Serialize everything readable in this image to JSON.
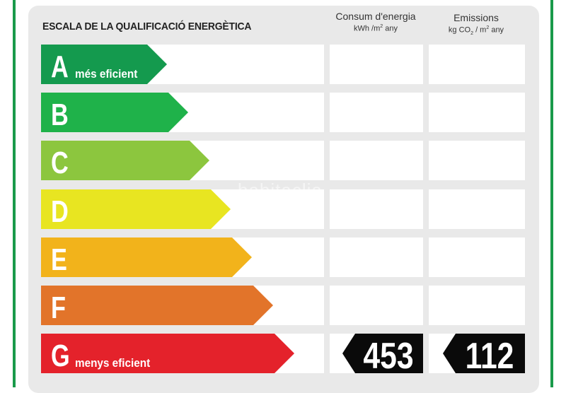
{
  "title": "ESCALA DE LA QUALIFICACIÓ ENERGÈTICA",
  "columns": {
    "consum": {
      "label": "Consum d'energia",
      "unit_pre": "kWh /m",
      "unit_sup": "2",
      "unit_post": " any"
    },
    "emissions": {
      "label": "Emissions",
      "unit_pre": "kg CO",
      "unit_sub": "2",
      "unit_mid": " / m",
      "unit_sup": "2",
      "unit_post": " any"
    }
  },
  "ratings": [
    {
      "letter": "A",
      "caption": "més eficient",
      "color": "#149a4e"
    },
    {
      "letter": "B",
      "caption": "",
      "color": "#1fb24a"
    },
    {
      "letter": "C",
      "caption": "",
      "color": "#8cc63e"
    },
    {
      "letter": "D",
      "caption": "",
      "color": "#e8e521"
    },
    {
      "letter": "E",
      "caption": "",
      "color": "#f2b31b"
    },
    {
      "letter": "F",
      "caption": "",
      "color": "#e2742a"
    },
    {
      "letter": "G",
      "caption": "menys eficient",
      "color": "#e4222b"
    }
  ],
  "current": {
    "rating": "G",
    "consum_value": "453",
    "emissions_value": "112"
  },
  "watermark": "habitaclia"
}
